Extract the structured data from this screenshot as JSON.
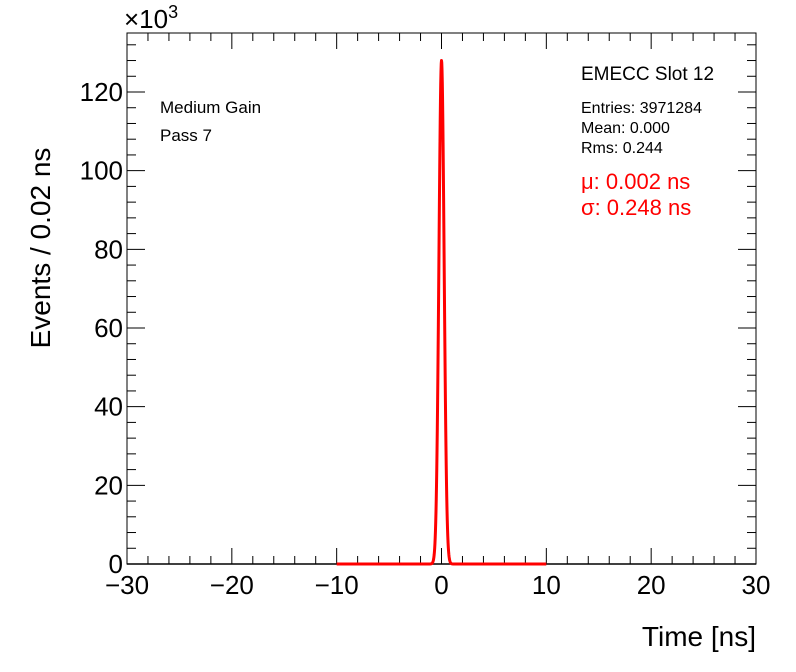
{
  "chart_data": {
    "type": "line",
    "xlabel": "Time [ns]",
    "ylabel": "Events / 0.02 ns",
    "xlim": [
      -30,
      30
    ],
    "ylim": [
      0,
      135000
    ],
    "x_ticks": [
      -30,
      -20,
      -10,
      0,
      10,
      20,
      30
    ],
    "x_tick_labels": [
      "−30",
      "−20",
      "−10",
      "0",
      "10",
      "20",
      "30"
    ],
    "y_ticks": [
      0,
      20000,
      40000,
      60000,
      80000,
      100000,
      120000
    ],
    "y_tick_labels": [
      "0",
      "20",
      "40",
      "60",
      "80",
      "100",
      "120"
    ],
    "y_exponent_label": "×10",
    "y_exponent_power": "3",
    "grid": false,
    "histogram": {
      "color": "#000000",
      "peak_x": 0.0,
      "peak_y": 128000,
      "sigma": 0.244
    },
    "fit": {
      "color": "#ff0000",
      "range": [
        -10,
        10
      ],
      "mu": 0.002,
      "sigma": 0.248,
      "amplitude": 128000
    },
    "annotations": {
      "info_line1": "Medium Gain",
      "info_line2": "Pass 7",
      "slot": "EMECC Slot 12",
      "entries": "Entries: 3971284",
      "mean": "Mean: 0.000",
      "rms": "Rms: 0.244",
      "fit_mu": "μ: 0.002 ns",
      "fit_sigma": "σ: 0.248 ns"
    }
  }
}
